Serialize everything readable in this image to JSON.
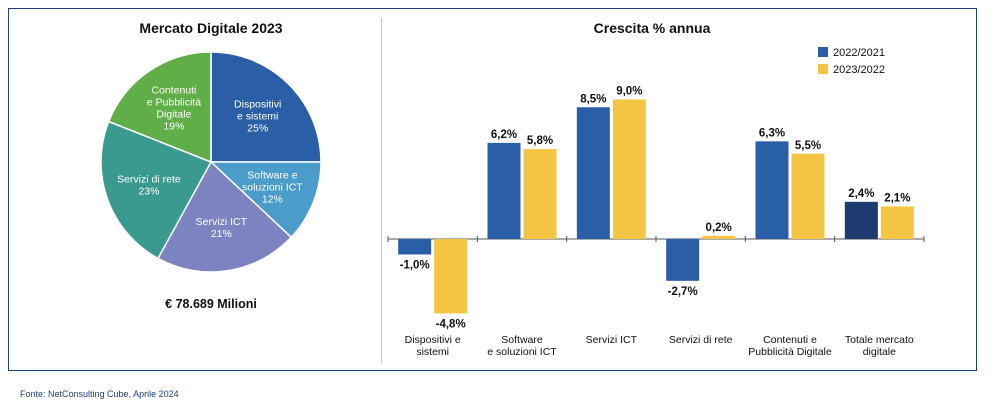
{
  "source": "Fonte: NetConsulting Cube, Aprile 2024",
  "chart_data": [
    {
      "type": "pie",
      "title": "Mercato Digitale 2023",
      "total_label": "€ 78.689 Milioni",
      "slices": [
        {
          "label": [
            "Dispositivi",
            "e sistemi"
          ],
          "value": 25,
          "pct_label": "25%",
          "color": "#2a5fa8"
        },
        {
          "label": [
            "Software e",
            "soluzioni ICT"
          ],
          "value": 12,
          "pct_label": "12%",
          "color": "#4a9ccb"
        },
        {
          "label": [
            "Servizi ICT"
          ],
          "value": 21,
          "pct_label": "21%",
          "color": "#7b83c0"
        },
        {
          "label": [
            "Servizi di rete"
          ],
          "value": 23,
          "pct_label": "23%",
          "color": "#3a9a90"
        },
        {
          "label": [
            "Contenuti",
            "e Pubblicità",
            "Digitale"
          ],
          "value": 19,
          "pct_label": "19%",
          "color": "#5fae47"
        }
      ]
    },
    {
      "type": "bar",
      "title": "Crescita % annua",
      "categories": [
        [
          "Dispositivi e",
          "sistemi"
        ],
        [
          "Software",
          "e soluzioni ICT"
        ],
        [
          "Servizi ICT"
        ],
        [
          "Servizi di rete"
        ],
        [
          "Contenuti e",
          "Pubblicità Digitale"
        ],
        [
          "Totale mercato",
          "digitale"
        ]
      ],
      "series": [
        {
          "name": "2022/2021",
          "color": "#2a5fa8",
          "values": [
            -1.0,
            6.2,
            8.5,
            -2.7,
            6.3,
            2.4
          ],
          "labels": [
            "-1,0%",
            "6,2%",
            "8,5%",
            "-2,7%",
            "6,3%",
            "2,4%"
          ]
        },
        {
          "name": "2023/2022",
          "color": "#f4c542",
          "values": [
            -4.8,
            5.8,
            9.0,
            0.2,
            5.5,
            2.1
          ],
          "labels": [
            "-4,8%",
            "5,8%",
            "9,0%",
            "0,2%",
            "5,5%",
            "2,1%"
          ]
        }
      ],
      "highlight_color": "#1f3a6e",
      "ylim": [
        -5,
        9.5
      ]
    }
  ]
}
